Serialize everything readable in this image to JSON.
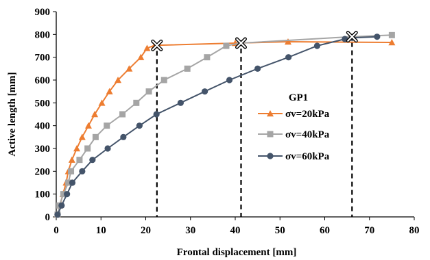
{
  "chart_data": {
    "type": "line",
    "xlabel": "Frontal displacement [mm]",
    "ylabel": "Active  length [mm]",
    "xlim": [
      0,
      80
    ],
    "ylim": [
      0,
      900
    ],
    "x_ticks": [
      0,
      10,
      20,
      30,
      40,
      50,
      60,
      70,
      80
    ],
    "y_ticks": [
      0,
      100,
      200,
      300,
      400,
      500,
      600,
      700,
      800,
      900
    ],
    "grid": false,
    "legend": {
      "title": "GP1",
      "placement": "right-middle"
    },
    "series": [
      {
        "name": "σv=20kPa",
        "color": "#ED7D31",
        "marker": "triangle",
        "points": [
          [
            0.3,
            10
          ],
          [
            0.8,
            50
          ],
          [
            1.5,
            100
          ],
          [
            2.2,
            150
          ],
          [
            2.7,
            200
          ],
          [
            3.5,
            250
          ],
          [
            4.6,
            300
          ],
          [
            5.8,
            350
          ],
          [
            7.2,
            400
          ],
          [
            8.6,
            450
          ],
          [
            10.2,
            500
          ],
          [
            11.9,
            550
          ],
          [
            13.8,
            600
          ],
          [
            16.3,
            650
          ],
          [
            18.9,
            700
          ],
          [
            20.3,
            740
          ],
          [
            22.0,
            752
          ],
          [
            40.0,
            762
          ],
          [
            51.8,
            768
          ],
          [
            75.0,
            765
          ]
        ]
      },
      {
        "name": "σv=40kPa",
        "color": "#A5A5A5",
        "marker": "square",
        "points": [
          [
            0.3,
            10
          ],
          [
            0.7,
            50
          ],
          [
            1.6,
            100
          ],
          [
            2.7,
            150
          ],
          [
            3.3,
            200
          ],
          [
            5.2,
            250
          ],
          [
            7.0,
            300
          ],
          [
            8.8,
            350
          ],
          [
            11.3,
            400
          ],
          [
            14.8,
            450
          ],
          [
            17.9,
            500
          ],
          [
            20.7,
            550
          ],
          [
            24.1,
            600
          ],
          [
            29.3,
            650
          ],
          [
            33.7,
            700
          ],
          [
            38.0,
            750
          ],
          [
            41.2,
            762
          ],
          [
            66.0,
            790
          ],
          [
            75.0,
            797
          ]
        ]
      },
      {
        "name": "σv=60kPa",
        "color": "#44546A",
        "marker": "circle",
        "points": [
          [
            0.3,
            10
          ],
          [
            1.2,
            50
          ],
          [
            2.4,
            100
          ],
          [
            3.6,
            150
          ],
          [
            5.8,
            200
          ],
          [
            8.1,
            250
          ],
          [
            11.5,
            300
          ],
          [
            15.0,
            350
          ],
          [
            18.6,
            400
          ],
          [
            22.4,
            450
          ],
          [
            27.8,
            500
          ],
          [
            33.2,
            550
          ],
          [
            38.7,
            600
          ],
          [
            45.0,
            650
          ],
          [
            51.9,
            700
          ],
          [
            58.3,
            750
          ],
          [
            64.5,
            780
          ],
          [
            66.1,
            785
          ],
          [
            71.7,
            790
          ]
        ]
      }
    ],
    "threshold_markers": [
      {
        "x": 22.5,
        "y": 752
      },
      {
        "x": 41.3,
        "y": 762
      },
      {
        "x": 66.1,
        "y": 790
      }
    ]
  }
}
